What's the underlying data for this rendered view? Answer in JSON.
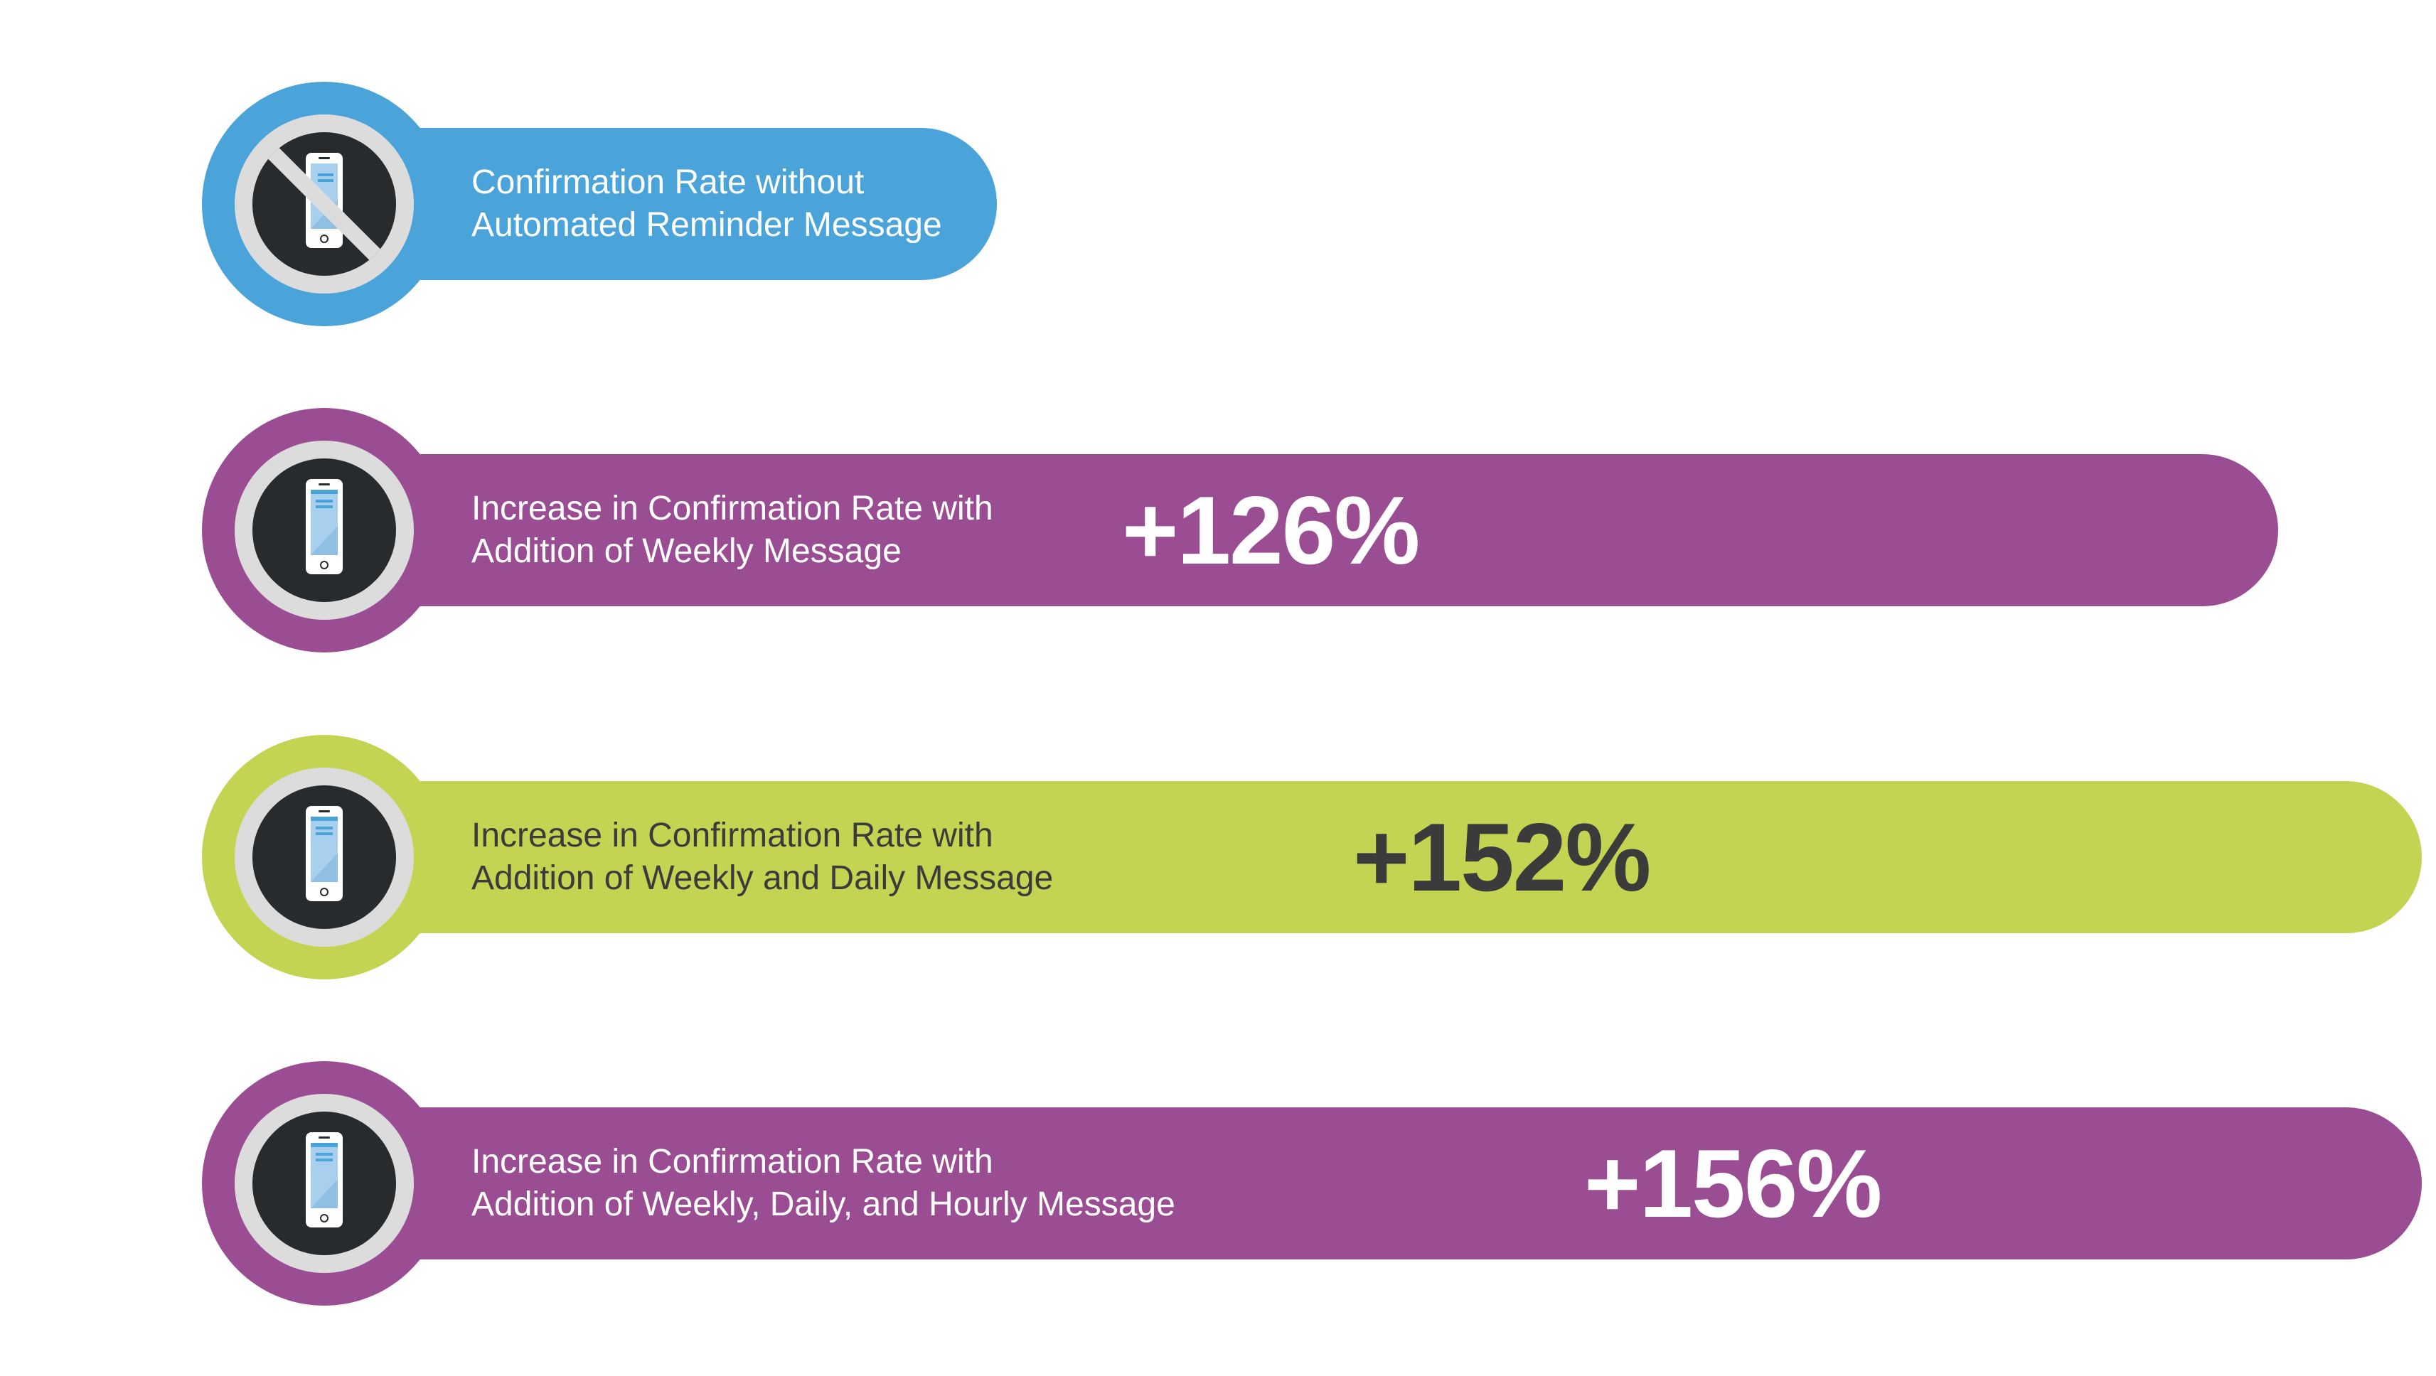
{
  "colors": {
    "blue": "#4aa4da",
    "purple": "#9b4d94",
    "lime": "#c4d352",
    "ring": "#dcdcdd",
    "core": "#282b2d",
    "phone_screen": "#a8d0ee"
  },
  "chart_data": {
    "type": "bar",
    "orientation": "horizontal",
    "unit": "%",
    "categories": [
      "Confirmation Rate without Automated Reminder Message",
      "Increase in Confirmation Rate with Addition of Weekly Message",
      "Increase in Confirmation Rate with Addition of Weekly and Daily Message",
      "Increase in Confirmation Rate with Addition of Weekly, Daily, and Hourly Message"
    ],
    "values": [
      0,
      126,
      152,
      156
    ],
    "value_labels": [
      "",
      "+126%",
      "+152%",
      "+156%"
    ],
    "bar_colors": [
      "blue",
      "purple",
      "lime",
      "purple"
    ],
    "icons": [
      "no-phone-icon",
      "phone-icon",
      "phone-icon",
      "phone-icon"
    ]
  },
  "rows": [
    {
      "line1": "Confirmation Rate without",
      "line2": "Automated Reminder Message",
      "value_label": ""
    },
    {
      "line1": "Increase in Confirmation Rate with",
      "line2": "Addition of Weekly Message",
      "value_label": "+126%"
    },
    {
      "line1": "Increase in Confirmation Rate with",
      "line2": "Addition of Weekly and Daily Message",
      "value_label": "+152%"
    },
    {
      "line1": "Increase in Confirmation Rate with",
      "line2": "Addition of Weekly, Daily, and Hourly Message",
      "value_label": "+156%"
    }
  ]
}
